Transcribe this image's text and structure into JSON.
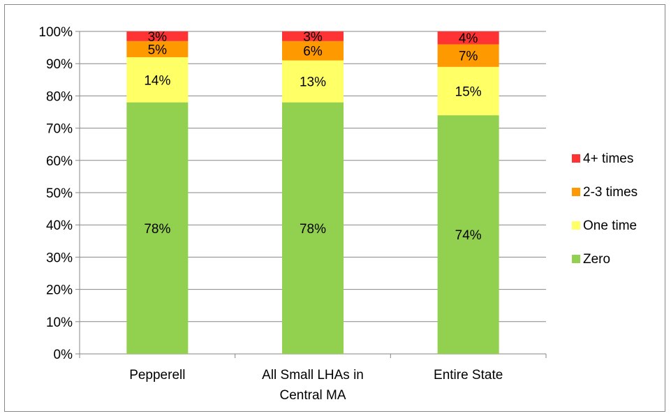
{
  "chart_data": {
    "type": "bar",
    "stacked": true,
    "normalized": true,
    "categories": [
      [
        "Pepperell"
      ],
      [
        "All Small LHAs in",
        "Central MA"
      ],
      [
        "Entire State"
      ]
    ],
    "series": [
      {
        "name": "Zero",
        "color": "#92D050",
        "values": [
          78,
          78,
          74
        ],
        "labels": [
          "78%",
          "78%",
          "74%"
        ]
      },
      {
        "name": "One time",
        "color": "#FFFF66",
        "values": [
          14,
          13,
          15
        ],
        "labels": [
          "14%",
          "13%",
          "15%"
        ]
      },
      {
        "name": "2-3 times",
        "color": "#FF9900",
        "values": [
          5,
          6,
          7
        ],
        "labels": [
          "5%",
          "6%",
          "7%"
        ]
      },
      {
        "name": "4+ times",
        "color": "#FF3333",
        "values": [
          3,
          3,
          4
        ],
        "labels": [
          "3%",
          "3%",
          "4%"
        ]
      }
    ],
    "yticks": [
      "0%",
      "10%",
      "20%",
      "30%",
      "40%",
      "50%",
      "60%",
      "70%",
      "80%",
      "90%",
      "100%"
    ],
    "ylim": [
      0,
      100
    ],
    "title": "",
    "xlabel": "",
    "ylabel": "",
    "grid": true,
    "legend_position": "right"
  }
}
